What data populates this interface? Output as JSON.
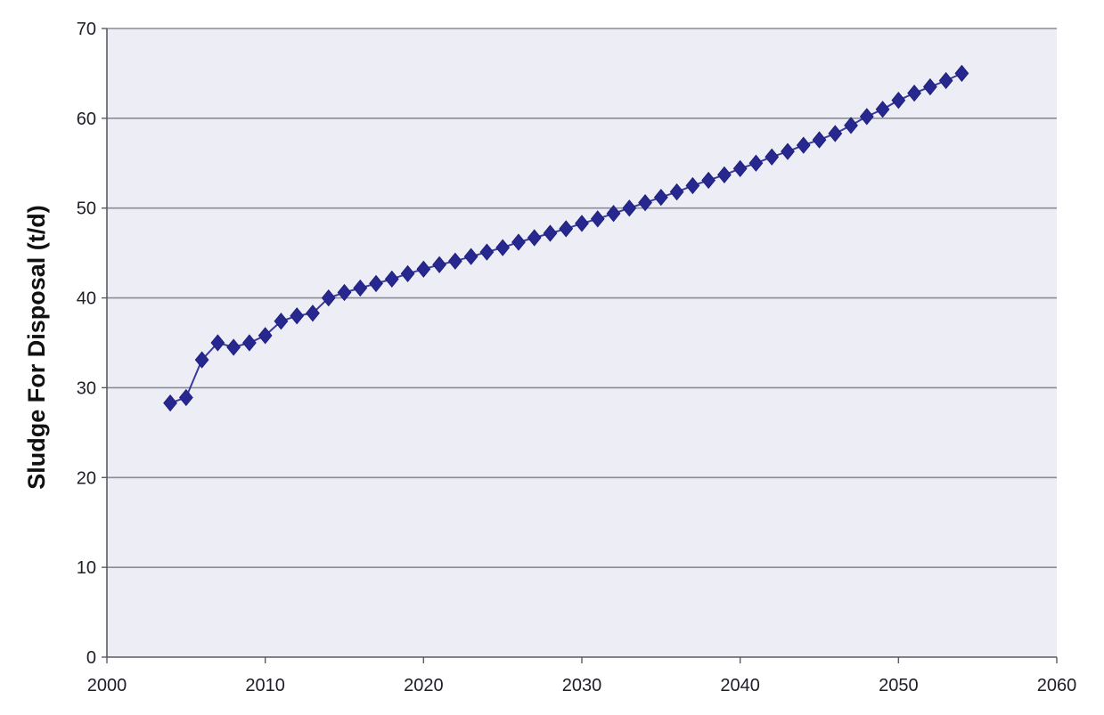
{
  "chart_data": {
    "type": "scatter",
    "title": "",
    "xlabel": "",
    "ylabel": "Sludge For Disposal (t/d)",
    "xlim": [
      2000,
      2060
    ],
    "ylim": [
      0,
      70
    ],
    "x_ticks": [
      2000,
      2010,
      2020,
      2030,
      2040,
      2050,
      2060
    ],
    "y_ticks": [
      0,
      10,
      20,
      30,
      40,
      50,
      60,
      70
    ],
    "grid": "horizontal",
    "legend": "none",
    "marker": "diamond",
    "connected": true,
    "series": [
      {
        "x": [
          2004,
          2005,
          2006,
          2007,
          2008,
          2009,
          2010,
          2011,
          2012,
          2013,
          2014,
          2015,
          2016,
          2017,
          2018,
          2019,
          2020,
          2021,
          2022,
          2023,
          2024,
          2025,
          2026,
          2027,
          2028,
          2029,
          2030,
          2031,
          2032,
          2033,
          2034,
          2035,
          2036,
          2037,
          2038,
          2039,
          2040,
          2041,
          2042,
          2043,
          2044,
          2045,
          2046,
          2047,
          2048,
          2049,
          2050,
          2051,
          2052,
          2053,
          2054
        ],
        "y": [
          28.3,
          28.9,
          33.1,
          35.0,
          34.5,
          35.0,
          35.8,
          37.4,
          38.0,
          38.3,
          40.0,
          40.6,
          41.1,
          41.6,
          42.1,
          42.7,
          43.2,
          43.7,
          44.1,
          44.6,
          45.1,
          45.6,
          46.2,
          46.7,
          47.2,
          47.7,
          48.3,
          48.8,
          49.4,
          50.0,
          50.6,
          51.2,
          51.8,
          52.5,
          53.1,
          53.7,
          54.4,
          55.0,
          55.7,
          56.3,
          57.0,
          57.6,
          58.3,
          59.2,
          60.2,
          61.0,
          62.0,
          62.8,
          63.5,
          64.2,
          65.0
        ]
      }
    ]
  },
  "colors": {
    "background": "#ffffff",
    "plot_background": "#ededf6",
    "gridline": "#8c8c96",
    "axis": "#5a5a64",
    "marker": "#26278f",
    "line": "#3a3b9c"
  }
}
